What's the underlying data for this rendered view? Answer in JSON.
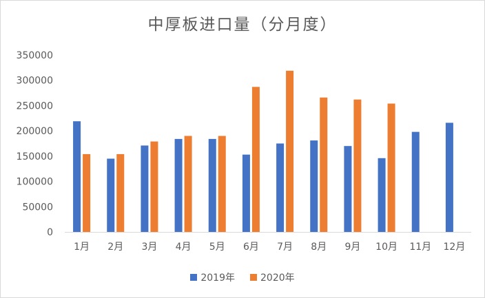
{
  "chart_data": {
    "type": "bar",
    "title": "中厚板进口量（分月度）",
    "xlabel": "",
    "ylabel": "",
    "categories": [
      "1月",
      "2月",
      "3月",
      "4月",
      "5月",
      "6月",
      "7月",
      "8月",
      "9月",
      "10月",
      "11月",
      "12月"
    ],
    "series": [
      {
        "name": "2019年",
        "color": "#4472C4",
        "values": [
          219000,
          145000,
          171000,
          184000,
          184000,
          153000,
          175000,
          181000,
          170000,
          146000,
          198000,
          216000
        ]
      },
      {
        "name": "2020年",
        "color": "#ED7D31",
        "values": [
          154000,
          154000,
          179000,
          190000,
          190000,
          287000,
          319000,
          266000,
          262000,
          254000,
          null,
          null
        ]
      }
    ],
    "ylim": [
      0,
      350000
    ],
    "yticks": [
      "0",
      "50000",
      "100000",
      "150000",
      "200000",
      "250000",
      "300000",
      "350000"
    ],
    "grid": false,
    "legend_position": "bottom"
  }
}
